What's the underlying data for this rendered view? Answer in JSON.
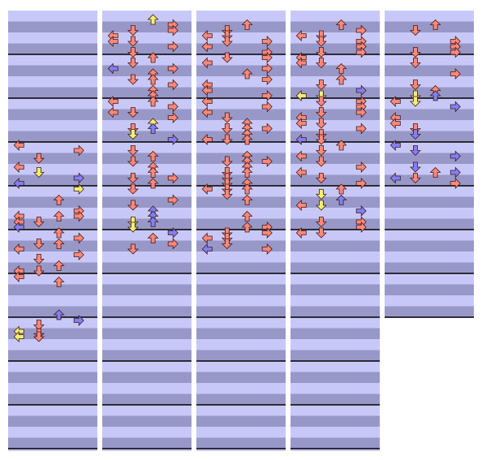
{
  "colors": {
    "band_light": "#c8c8f8",
    "band_dark": "#9898c8",
    "measure_line": "#000000",
    "arrow_red": "#ff8878",
    "arrow_blue": "#8080f8",
    "arrow_yellow": "#f0f070",
    "arrow_outline": "#401818"
  },
  "chart_data": {
    "type": "step-chart",
    "lanes": [
      "left",
      "down",
      "up",
      "right"
    ],
    "columns": [
      {
        "measures": 10,
        "notes": [
          [
            "L",
            2.0,
            "r"
          ],
          [
            "R",
            2.12,
            "r"
          ],
          [
            "D",
            2.3,
            "r"
          ],
          [
            "L",
            2.5,
            "r"
          ],
          [
            "D",
            2.62,
            "y"
          ],
          [
            "R",
            2.75,
            "b"
          ],
          [
            "L",
            2.87,
            "b"
          ],
          [
            "R",
            3.0,
            "y"
          ],
          [
            "U",
            3.25,
            "r"
          ],
          [
            "R",
            3.5,
            "r"
          ],
          [
            "L",
            3.62,
            "r"
          ],
          [
            "U",
            3.62,
            "r"
          ],
          [
            "R",
            3.62,
            "r"
          ],
          [
            "L",
            3.75,
            "r"
          ],
          [
            "D",
            3.75,
            "r"
          ],
          [
            "L",
            3.87,
            "b"
          ],
          [
            "U",
            4.0,
            "r"
          ],
          [
            "R",
            4.12,
            "r"
          ],
          [
            "U",
            4.25,
            "r"
          ],
          [
            "D",
            4.25,
            "r"
          ],
          [
            "L",
            4.37,
            "r"
          ],
          [
            "R",
            4.5,
            "r"
          ],
          [
            "D",
            4.6,
            "r"
          ],
          [
            "U",
            4.75,
            "r"
          ],
          [
            "L",
            4.87,
            "r"
          ],
          [
            "D",
            4.87,
            "r"
          ],
          [
            "L",
            5.0,
            "r"
          ],
          [
            "U",
            5.12,
            "r"
          ],
          [
            "U",
            5.87,
            "b"
          ],
          [
            "R",
            6.0,
            "b"
          ],
          [
            "D",
            6.1,
            "r"
          ],
          [
            "L",
            6.25,
            "y"
          ],
          [
            "D",
            6.3,
            "r"
          ],
          [
            "L",
            6.37,
            "y"
          ],
          [
            "D",
            6.37,
            "r"
          ]
        ]
      },
      {
        "measures": 10,
        "notes": [
          [
            "U",
            -0.87,
            "y"
          ],
          [
            "R",
            -0.75,
            "r"
          ],
          [
            "D",
            -0.62,
            "r"
          ],
          [
            "R",
            -0.62,
            "r"
          ],
          [
            "L",
            -0.5,
            "r"
          ],
          [
            "L",
            -0.37,
            "r"
          ],
          [
            "D",
            -0.37,
            "r"
          ],
          [
            "R",
            -0.25,
            "r"
          ],
          [
            "D",
            -0.12,
            "r"
          ],
          [
            "U",
            0.0,
            "r"
          ],
          [
            "D",
            0.12,
            "r"
          ],
          [
            "L",
            0.25,
            "b"
          ],
          [
            "R",
            0.25,
            "r"
          ],
          [
            "U",
            0.37,
            "r"
          ],
          [
            "D",
            0.5,
            "r"
          ],
          [
            "U",
            0.5,
            "r"
          ],
          [
            "R",
            0.62,
            "r"
          ],
          [
            "U",
            0.75,
            "r"
          ],
          [
            "U",
            0.87,
            "r"
          ],
          [
            "L",
            1.0,
            "r"
          ],
          [
            "U",
            1.0,
            "r"
          ],
          [
            "R",
            1.12,
            "r"
          ],
          [
            "L",
            1.25,
            "r"
          ],
          [
            "D",
            1.25,
            "r"
          ],
          [
            "R",
            1.37,
            "r"
          ],
          [
            "U",
            1.5,
            "y"
          ],
          [
            "D",
            1.62,
            "r"
          ],
          [
            "U",
            1.62,
            "b"
          ],
          [
            "D",
            1.75,
            "y"
          ],
          [
            "R",
            1.87,
            "b"
          ],
          [
            "D",
            2.12,
            "r"
          ],
          [
            "U",
            2.25,
            "r"
          ],
          [
            "D",
            2.37,
            "r"
          ],
          [
            "U",
            2.5,
            "r"
          ],
          [
            "U",
            2.62,
            "r"
          ],
          [
            "D",
            2.75,
            "r"
          ],
          [
            "R",
            2.75,
            "r"
          ],
          [
            "U",
            2.87,
            "r"
          ],
          [
            "D",
            3.0,
            "r"
          ],
          [
            "R",
            3.25,
            "r"
          ],
          [
            "D",
            3.37,
            "r"
          ],
          [
            "U",
            3.5,
            "b"
          ],
          [
            "U",
            3.62,
            "b"
          ],
          [
            "D",
            3.75,
            "y"
          ],
          [
            "U",
            3.75,
            "b"
          ],
          [
            "D",
            3.87,
            "y"
          ],
          [
            "R",
            4.0,
            "b"
          ],
          [
            "U",
            4.12,
            "r"
          ],
          [
            "R",
            4.25,
            "r"
          ],
          [
            "D",
            4.37,
            "r"
          ]
        ]
      },
      {
        "measures": 10,
        "notes": [
          [
            "U",
            -0.75,
            "r"
          ],
          [
            "D",
            -0.62,
            "r"
          ],
          [
            "L",
            -0.5,
            "r"
          ],
          [
            "D",
            -0.5,
            "r"
          ],
          [
            "D",
            -0.37,
            "r"
          ],
          [
            "R",
            -0.37,
            "r"
          ],
          [
            "L",
            -0.25,
            "r"
          ],
          [
            "R",
            -0.12,
            "r"
          ],
          [
            "D",
            0.0,
            "r"
          ],
          [
            "R",
            0.0,
            "r"
          ],
          [
            "L",
            0.12,
            "r"
          ],
          [
            "R",
            0.25,
            "r"
          ],
          [
            "U",
            0.37,
            "r"
          ],
          [
            "R",
            0.5,
            "r"
          ],
          [
            "L",
            0.62,
            "r"
          ],
          [
            "L",
            0.75,
            "r"
          ],
          [
            "R",
            0.87,
            "r"
          ],
          [
            "L",
            1.0,
            "r"
          ],
          [
            "R",
            1.12,
            "r"
          ],
          [
            "L",
            1.25,
            "r"
          ],
          [
            "D",
            1.37,
            "r"
          ],
          [
            "U",
            1.5,
            "r"
          ],
          [
            "D",
            1.62,
            "r"
          ],
          [
            "U",
            1.62,
            "r"
          ],
          [
            "R",
            1.62,
            "r"
          ],
          [
            "U",
            1.75,
            "r"
          ],
          [
            "L",
            1.87,
            "r"
          ],
          [
            "D",
            1.87,
            "r"
          ],
          [
            "U",
            1.87,
            "r"
          ],
          [
            "U",
            2.25,
            "r"
          ],
          [
            "D",
            2.37,
            "r"
          ],
          [
            "U",
            2.37,
            "r"
          ],
          [
            "R",
            2.37,
            "r"
          ],
          [
            "U",
            2.5,
            "r"
          ],
          [
            "D",
            2.62,
            "r"
          ],
          [
            "U",
            2.62,
            "r"
          ],
          [
            "D",
            2.75,
            "r"
          ],
          [
            "U",
            2.87,
            "r"
          ],
          [
            "D",
            2.87,
            "r"
          ],
          [
            "L",
            3.0,
            "r"
          ],
          [
            "D",
            3.0,
            "r"
          ],
          [
            "U",
            3.0,
            "r"
          ],
          [
            "D",
            3.12,
            "r"
          ],
          [
            "U",
            3.25,
            "r"
          ],
          [
            "U",
            3.62,
            "r"
          ],
          [
            "R",
            3.87,
            "r"
          ],
          [
            "U",
            3.87,
            "r"
          ],
          [
            "D",
            4.0,
            "r"
          ],
          [
            "R",
            4.0,
            "r"
          ],
          [
            "L",
            4.12,
            "r"
          ],
          [
            "D",
            4.12,
            "r"
          ],
          [
            "D",
            4.25,
            "r"
          ],
          [
            "L",
            4.37,
            "b"
          ],
          [
            "R",
            4.37,
            "r"
          ]
        ]
      },
      {
        "measures": 10,
        "notes": [
          [
            "U",
            -0.75,
            "r"
          ],
          [
            "R",
            -0.62,
            "r"
          ],
          [
            "L",
            -0.5,
            "r"
          ],
          [
            "D",
            -0.5,
            "r"
          ],
          [
            "R",
            -0.37,
            "r"
          ],
          [
            "D",
            -0.37,
            "r"
          ],
          [
            "R",
            -0.25,
            "r"
          ],
          [
            "D",
            -0.12,
            "r"
          ],
          [
            "R",
            -0.12,
            "r"
          ],
          [
            "L",
            0.0,
            "r"
          ],
          [
            "L",
            0.12,
            "r"
          ],
          [
            "D",
            0.12,
            "r"
          ],
          [
            "U",
            0.25,
            "r"
          ],
          [
            "U",
            0.5,
            "r"
          ],
          [
            "D",
            0.62,
            "r"
          ],
          [
            "R",
            0.75,
            "b"
          ],
          [
            "D",
            0.87,
            "y"
          ],
          [
            "L",
            0.87,
            "y"
          ],
          [
            "R",
            1.0,
            "r"
          ],
          [
            "D",
            1.0,
            "r"
          ],
          [
            "R",
            1.12,
            "r"
          ],
          [
            "D",
            1.25,
            "r"
          ],
          [
            "R",
            1.25,
            "r"
          ],
          [
            "L",
            1.37,
            "r"
          ],
          [
            "D",
            1.5,
            "r"
          ],
          [
            "L",
            1.5,
            "r"
          ],
          [
            "R",
            1.62,
            "r"
          ],
          [
            "D",
            1.75,
            "r"
          ],
          [
            "L",
            1.87,
            "b"
          ],
          [
            "D",
            1.87,
            "r"
          ],
          [
            "U",
            2.0,
            "r"
          ],
          [
            "D",
            2.12,
            "r"
          ],
          [
            "L",
            2.25,
            "r"
          ],
          [
            "D",
            2.37,
            "r"
          ],
          [
            "R",
            2.5,
            "r"
          ],
          [
            "L",
            2.62,
            "r"
          ],
          [
            "D",
            2.75,
            "r"
          ],
          [
            "R",
            2.87,
            "r"
          ],
          [
            "U",
            3.0,
            "r"
          ],
          [
            "D",
            3.12,
            "y"
          ],
          [
            "U",
            3.25,
            "b"
          ],
          [
            "D",
            3.37,
            "y"
          ],
          [
            "L",
            3.37,
            "r"
          ],
          [
            "R",
            3.5,
            "b"
          ],
          [
            "D",
            3.75,
            "r"
          ],
          [
            "R",
            3.75,
            "r"
          ],
          [
            "R",
            3.87,
            "r"
          ],
          [
            "L",
            4.0,
            "r"
          ],
          [
            "D",
            4.0,
            "r"
          ]
        ]
      },
      {
        "measures": 7,
        "notes": [
          [
            "U",
            -0.75,
            "r"
          ],
          [
            "D",
            -0.62,
            "r"
          ],
          [
            "R",
            -0.37,
            "r"
          ],
          [
            "R",
            -0.25,
            "r"
          ],
          [
            "D",
            -0.12,
            "r"
          ],
          [
            "R",
            -0.12,
            "r"
          ],
          [
            "D",
            0.12,
            "r"
          ],
          [
            "R",
            0.37,
            "r"
          ],
          [
            "D",
            0.62,
            "r"
          ],
          [
            "U",
            0.75,
            "r"
          ],
          [
            "D",
            0.87,
            "y"
          ],
          [
            "U",
            0.87,
            "b"
          ],
          [
            "D",
            1.0,
            "y"
          ],
          [
            "L",
            1.0,
            "r"
          ],
          [
            "R",
            1.12,
            "b"
          ],
          [
            "L",
            1.37,
            "r"
          ],
          [
            "L",
            1.5,
            "r"
          ],
          [
            "D",
            1.62,
            "r"
          ],
          [
            "D",
            1.75,
            "b"
          ],
          [
            "L",
            2.0,
            "b"
          ],
          [
            "D",
            2.12,
            "b"
          ],
          [
            "R",
            2.25,
            "b"
          ],
          [
            "D",
            2.5,
            "b"
          ],
          [
            "U",
            2.62,
            "r"
          ],
          [
            "R",
            2.62,
            "b"
          ],
          [
            "L",
            2.75,
            "b"
          ],
          [
            "D",
            2.75,
            "r"
          ],
          [
            "R",
            2.87,
            "r"
          ]
        ]
      }
    ]
  }
}
